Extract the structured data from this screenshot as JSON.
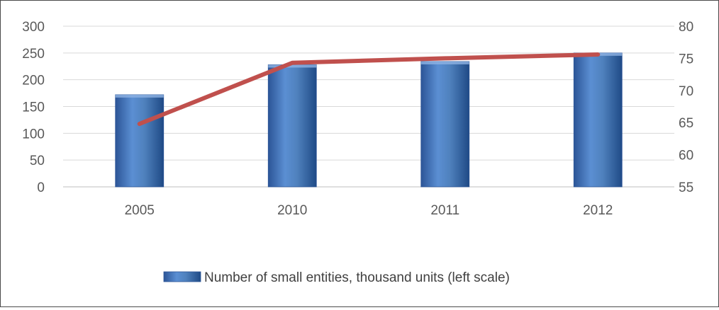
{
  "chart_data": {
    "type": "bar",
    "categories": [
      "2005",
      "2010",
      "2011",
      "2012"
    ],
    "series": [
      {
        "name": "Number of small entities, thousand units (left scale)",
        "type": "bar",
        "axis": "left",
        "values": [
          172,
          228,
          234,
          250
        ]
      },
      {
        "type": "line",
        "axis": "right",
        "values": [
          64.8,
          74.3,
          75.0,
          75.6
        ]
      }
    ],
    "left_axis": {
      "ylim": [
        0,
        300
      ],
      "ticks": [
        "0",
        "50",
        "100",
        "150",
        "200",
        "250",
        "300"
      ]
    },
    "right_axis": {
      "ylim": [
        55,
        80
      ],
      "ticks": [
        "55",
        "60",
        "65",
        "70",
        "75",
        "80"
      ]
    },
    "grid": true,
    "legend": "bottom-center",
    "colors": {
      "bar": "#4f81bd",
      "line": "#c0504d",
      "grid": "#d9d9d9"
    }
  }
}
